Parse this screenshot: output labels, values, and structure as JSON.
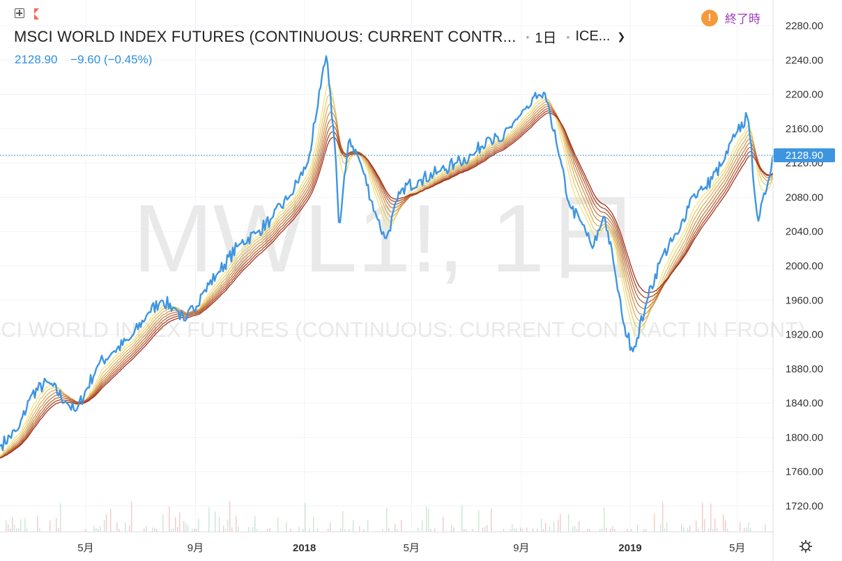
{
  "header": {
    "title": "MSCI WORLD INDEX FUTURES (CONTINUOUS: CURRENT CONTR...",
    "interval": "1日",
    "exchange": "ICE...",
    "last_price": "2128.90",
    "change": "−9.60 (−0.45%)",
    "market_status": "終了時"
  },
  "watermark": {
    "symbol": "MWL1!, 1日",
    "name": "MSCI WORLD INDEX FUTURES (CONTINUOUS: CURRENT CONTRACT IN FRONT)"
  },
  "price_label": "2128.90",
  "colors": {
    "price_line": "#3d95e0",
    "ribbon_light": "#f3e27a",
    "ribbon_dark": "#a0301c",
    "grid": "#f0f3fa",
    "axis_text": "#333333",
    "status_orange": "#f59a3c",
    "status_text": "#9a3eb8"
  },
  "chart_data": {
    "type": "line",
    "title": "MSCI WORLD INDEX FUTURES (CONTINUOUS: CURRENT CONTRACT IN FRONT)",
    "xlabel": "",
    "ylabel": "",
    "ylim": [
      1690,
      2310
    ],
    "y_ticks": [
      "2280.00",
      "2240.00",
      "2200.00",
      "2160.00",
      "2120.00",
      "2080.00",
      "2040.00",
      "2000.00",
      "1960.00",
      "1920.00",
      "1880.00",
      "1840.00",
      "1800.00",
      "1760.00",
      "1720.00"
    ],
    "x_ticks": [
      {
        "label": "5月",
        "date": "2017-05-01"
      },
      {
        "label": "9月",
        "date": "2017-09-01"
      },
      {
        "label": "2018",
        "date": "2018-01-01"
      },
      {
        "label": "5月",
        "date": "2018-05-01"
      },
      {
        "label": "9月",
        "date": "2018-09-01"
      },
      {
        "label": "2019",
        "date": "2019-01-01"
      },
      {
        "label": "5月",
        "date": "2019-05-01"
      }
    ],
    "x_range": [
      "2017-01-25",
      "2019-06-10"
    ],
    "grid": true,
    "series": [
      {
        "name": "",
        "dates": [
          "2017-01-25",
          "2017-02-15",
          "2017-03-01",
          "2017-03-20",
          "2017-04-10",
          "2017-04-20",
          "2017-05-15",
          "2017-06-01",
          "2017-06-20",
          "2017-07-10",
          "2017-07-25",
          "2017-08-10",
          "2017-08-20",
          "2017-09-10",
          "2017-09-25",
          "2017-10-20",
          "2017-11-10",
          "2017-11-25",
          "2017-12-15",
          "2018-01-05",
          "2018-01-15",
          "2018-01-26",
          "2018-02-05",
          "2018-02-09",
          "2018-02-20",
          "2018-03-05",
          "2018-03-22",
          "2018-04-02",
          "2018-04-20",
          "2018-05-10",
          "2018-06-01",
          "2018-06-20",
          "2018-07-10",
          "2018-07-25",
          "2018-08-10",
          "2018-08-25",
          "2018-09-10",
          "2018-09-21",
          "2018-10-01",
          "2018-10-11",
          "2018-10-25",
          "2018-11-08",
          "2018-11-20",
          "2018-12-03",
          "2018-12-14",
          "2018-12-24",
          "2019-01-04",
          "2019-01-20",
          "2019-02-05",
          "2019-02-25",
          "2019-03-10",
          "2019-03-25",
          "2019-04-15",
          "2019-04-30",
          "2019-05-13",
          "2019-05-24",
          "2019-06-03",
          "2019-06-10"
        ],
        "values": [
          1790,
          1810,
          1850,
          1865,
          1840,
          1830,
          1885,
          1900,
          1915,
          1945,
          1960,
          1950,
          1935,
          1970,
          1990,
          2025,
          2040,
          2055,
          2080,
          2120,
          2180,
          2248,
          2130,
          2040,
          2150,
          2120,
          2060,
          2030,
          2090,
          2100,
          2110,
          2120,
          2130,
          2150,
          2145,
          2170,
          2185,
          2200,
          2190,
          2140,
          2070,
          2050,
          2020,
          2060,
          2000,
          1935,
          1900,
          1960,
          2010,
          2040,
          2080,
          2090,
          2120,
          2155,
          2175,
          2050,
          2090,
          2128.9
        ]
      }
    ]
  }
}
